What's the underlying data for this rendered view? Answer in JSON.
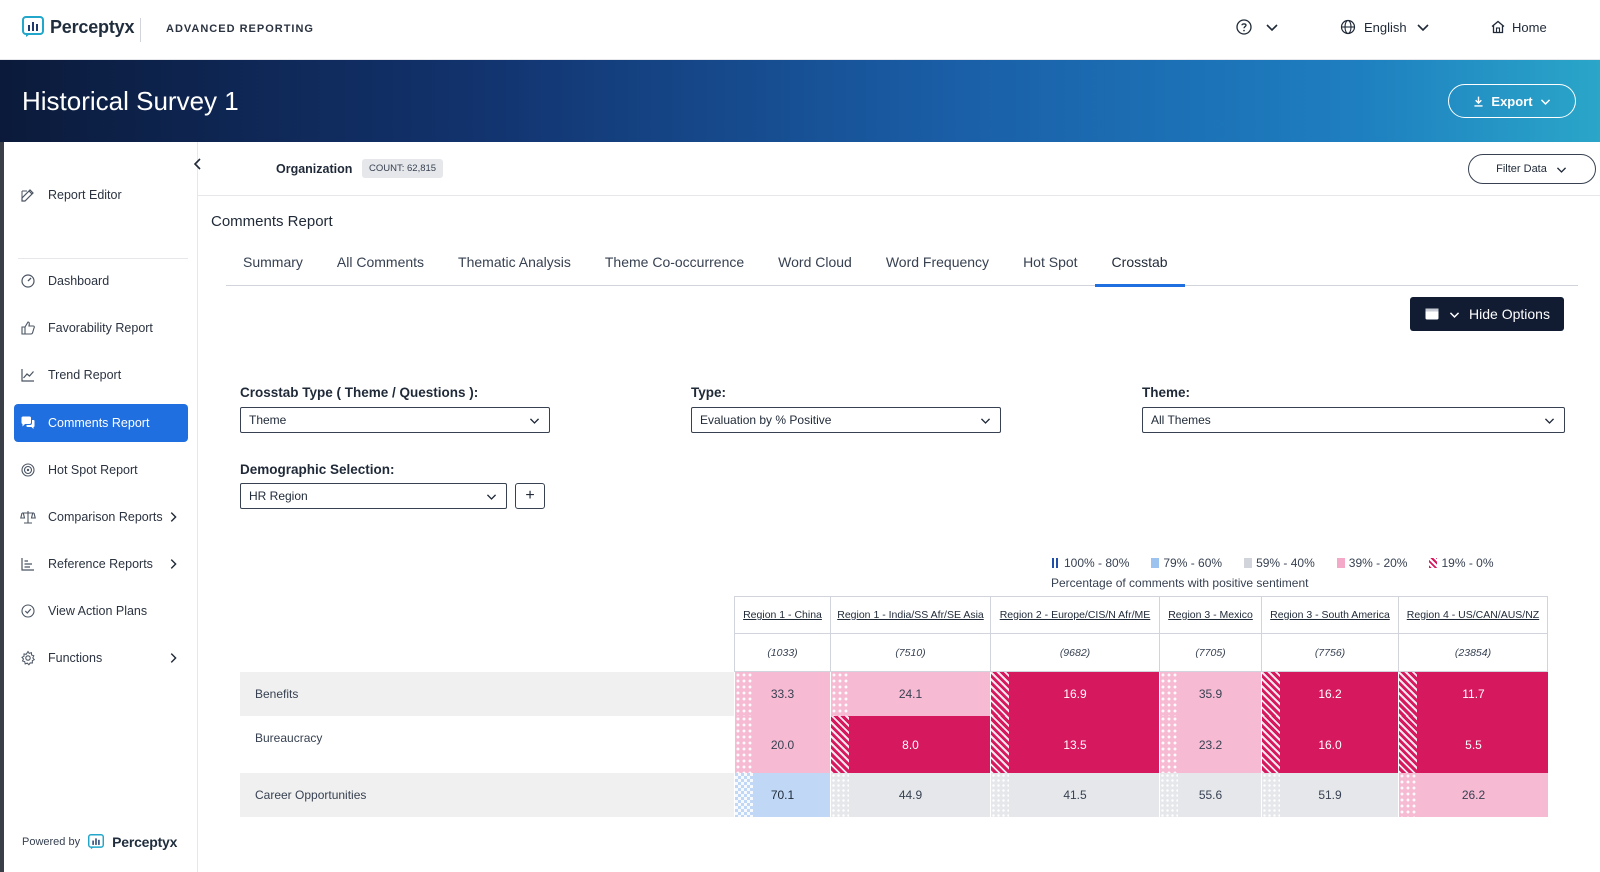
{
  "topbar": {
    "brand": "Perceptyx",
    "product": "ADVANCED REPORTING",
    "language": "English",
    "home_label": "Home"
  },
  "banner": {
    "title": "Historical Survey 1",
    "export_label": "Export"
  },
  "sidebar": {
    "items": [
      {
        "label": "Report Editor",
        "icon": "edit-icon"
      },
      {
        "label": "Dashboard",
        "icon": "gauge-icon"
      },
      {
        "label": "Favorability Report",
        "icon": "thumbs-up-icon"
      },
      {
        "label": "Trend Report",
        "icon": "trend-icon"
      },
      {
        "label": "Comments Report",
        "icon": "comments-icon"
      },
      {
        "label": "Hot Spot Report",
        "icon": "target-icon"
      },
      {
        "label": "Comparison Reports",
        "icon": "scale-icon"
      },
      {
        "label": "Reference Reports",
        "icon": "bar-chart-icon"
      },
      {
        "label": "View Action Plans",
        "icon": "check-circle-icon"
      },
      {
        "label": "Functions",
        "icon": "gear-icon"
      }
    ],
    "powered_by": "Powered by",
    "powered_brand": "Perceptyx"
  },
  "org": {
    "label": "Organization",
    "count": "COUNT: 62,815",
    "filter_label": "Filter Data"
  },
  "report": {
    "title": "Comments Report",
    "tabs": [
      "Summary",
      "All Comments",
      "Thematic Analysis",
      "Theme Co-occurrence",
      "Word Cloud",
      "Word Frequency",
      "Hot Spot",
      "Crosstab"
    ],
    "active_tab": "Crosstab",
    "hide_options_label": "Hide Options"
  },
  "form": {
    "crosstab_type_label": "Crosstab Type ( Theme / Questions ):",
    "crosstab_type_value": "Theme",
    "type_label": "Type:",
    "type_value": "Evaluation by % Positive",
    "theme_label": "Theme:",
    "theme_value": "All Themes",
    "demographic_label": "Demographic Selection:",
    "demographic_value": "HR Region",
    "add_label": "+"
  },
  "legend": {
    "items": [
      {
        "label": "100% - 80%",
        "color": "#1f4fa8"
      },
      {
        "label": "79% - 60%",
        "color": "#9cc3f0"
      },
      {
        "label": "59% - 40%",
        "color": "#d1d5db"
      },
      {
        "label": "39% - 20%",
        "color": "#f5a9c8"
      },
      {
        "label": "19% - 0%",
        "color": "#d6195e"
      }
    ],
    "caption": "Percentage of comments with positive sentiment"
  },
  "crosstab": {
    "columns": [
      {
        "label": "Region 1 - China",
        "count": "(1033)"
      },
      {
        "label": "Region 1 - India/SS Afr/SE Asia",
        "count": "(7510)"
      },
      {
        "label": "Region 2 - Europe/CIS/N Afr/ME",
        "count": "(9682)"
      },
      {
        "label": "Region 3 - Mexico",
        "count": "(7705)"
      },
      {
        "label": "Region 3 - South America",
        "count": "(7756)"
      },
      {
        "label": "Region 4 - US/CAN/AUS/NZ",
        "count": "(23854)"
      }
    ],
    "rows": [
      {
        "label": "Benefits",
        "values": [
          "33.3",
          "24.1",
          "16.9",
          "35.9",
          "16.2",
          "11.7"
        ]
      },
      {
        "label": "Bureaucracy",
        "values": [
          "20.0",
          "8.0",
          "13.5",
          "23.2",
          "16.0",
          "5.5"
        ]
      },
      {
        "label": "Career Opportunities",
        "values": [
          "70.1",
          "44.9",
          "41.5",
          "55.6",
          "51.9",
          "26.2"
        ]
      }
    ]
  },
  "colors": {
    "accent": "#1f6fe0",
    "low": "#d6195e",
    "mid_low": "#f6bad3",
    "mid": "#e5e7eb",
    "mid_high": "#c0d8f5",
    "row_alt": "#f0f0f0"
  }
}
